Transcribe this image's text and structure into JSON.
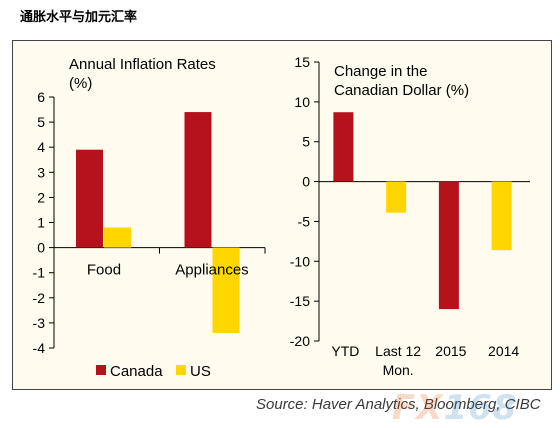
{
  "page_title": "通胀水平与加元汇率",
  "source": "Source: Haver Analytics, Bloomberg, CIBC",
  "watermark": {
    "part1": "FX",
    "part2": "168"
  },
  "colors": {
    "canada": "#b5121b",
    "us": "#ffd600",
    "axis": "#000000",
    "background": "#fffbee"
  },
  "legend": [
    {
      "name": "Canada",
      "color": "#b5121b"
    },
    {
      "name": "US",
      "color": "#ffd600"
    }
  ],
  "chart_data": [
    {
      "type": "bar",
      "title": [
        "Annual Inflation Rates",
        "(%)"
      ],
      "categories": [
        "Food",
        "Appliances"
      ],
      "series": [
        {
          "name": "Canada",
          "values": [
            3.9,
            5.4
          ]
        },
        {
          "name": "US",
          "values": [
            0.8,
            -3.4
          ]
        }
      ],
      "ylim": [
        -4,
        6
      ],
      "yticks": [
        "6",
        "5",
        "4",
        "3",
        "2",
        "1",
        "0",
        "-1",
        "-2",
        "-3",
        "-4"
      ],
      "legend_position": "bottom"
    },
    {
      "type": "bar",
      "title": [
        "Change in the",
        "Canadian Dollar (%)"
      ],
      "categories": [
        "YTD",
        "Last 12 Mon.",
        "2015",
        "2014"
      ],
      "category_lines": [
        [
          "YTD"
        ],
        [
          "Last 12",
          "Mon."
        ],
        [
          "2015"
        ],
        [
          "2014"
        ]
      ],
      "values": [
        8.7,
        -3.9,
        -16.0,
        -8.6
      ],
      "bar_colors": [
        "#b5121b",
        "#ffd600",
        "#b5121b",
        "#ffd600"
      ],
      "ylim": [
        -20,
        15
      ],
      "yticks": [
        "15",
        "10",
        "5",
        "0",
        "-5",
        "-10",
        "-15",
        "-20"
      ]
    }
  ]
}
